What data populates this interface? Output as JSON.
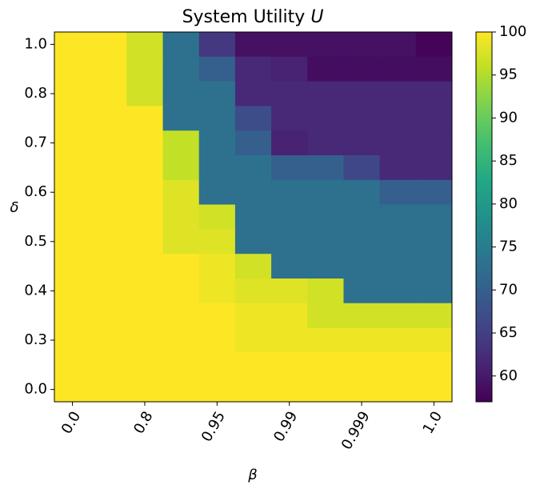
{
  "chart_data": {
    "type": "heatmap",
    "title": "System Utility",
    "title_variable": "U",
    "x_label": "β",
    "y_label": "δ",
    "x_categories": [
      "0.0",
      null,
      "0.8",
      null,
      "0.95",
      null,
      "0.99",
      null,
      "0.999",
      null,
      "1.0"
    ],
    "y_categories": [
      "1.0",
      null,
      "0.8",
      null,
      "0.7",
      null,
      "0.6",
      null,
      "0.5",
      null,
      "0.4",
      null,
      "0.3",
      null,
      "0.0"
    ],
    "values": [
      [
        100,
        100,
        97,
        73,
        64,
        59,
        59,
        59,
        59,
        59,
        57.5
      ],
      [
        100,
        100,
        97,
        73,
        70,
        62,
        61,
        58.5,
        58.5,
        58.5,
        58.5
      ],
      [
        100,
        100,
        97,
        73,
        73,
        62,
        62,
        62,
        62,
        62,
        62
      ],
      [
        100,
        100,
        100,
        73,
        73,
        67,
        62,
        62,
        62,
        62,
        62
      ],
      [
        100,
        100,
        100,
        96,
        73,
        70,
        61,
        62,
        62,
        62,
        62
      ],
      [
        100,
        100,
        100,
        96,
        73,
        73,
        70,
        70,
        66,
        62,
        62
      ],
      [
        100,
        100,
        100,
        98,
        73,
        73,
        73,
        73,
        73,
        70,
        70
      ],
      [
        100,
        100,
        100,
        98,
        97,
        73,
        73,
        73,
        73,
        73,
        73
      ],
      [
        100,
        100,
        100,
        98,
        98,
        73,
        73,
        73,
        73,
        73,
        73
      ],
      [
        100,
        100,
        100,
        100,
        99,
        97,
        73,
        73,
        73,
        73,
        73
      ],
      [
        100,
        100,
        100,
        100,
        99,
        98,
        98,
        97,
        73,
        73,
        73
      ],
      [
        100,
        100,
        100,
        100,
        100,
        99,
        99,
        97,
        97,
        97,
        97
      ],
      [
        100,
        100,
        100,
        100,
        100,
        99,
        99,
        99,
        99,
        99,
        99
      ],
      [
        100,
        100,
        100,
        100,
        100,
        100,
        100,
        100,
        100,
        100,
        100
      ],
      [
        100,
        100,
        100,
        100,
        100,
        100,
        100,
        100,
        100,
        100,
        100
      ]
    ],
    "colormap": "viridis",
    "clim": [
      57,
      100
    ],
    "colorbar_ticks": [
      60,
      65,
      70,
      75,
      80,
      85,
      90,
      95,
      100
    ]
  }
}
